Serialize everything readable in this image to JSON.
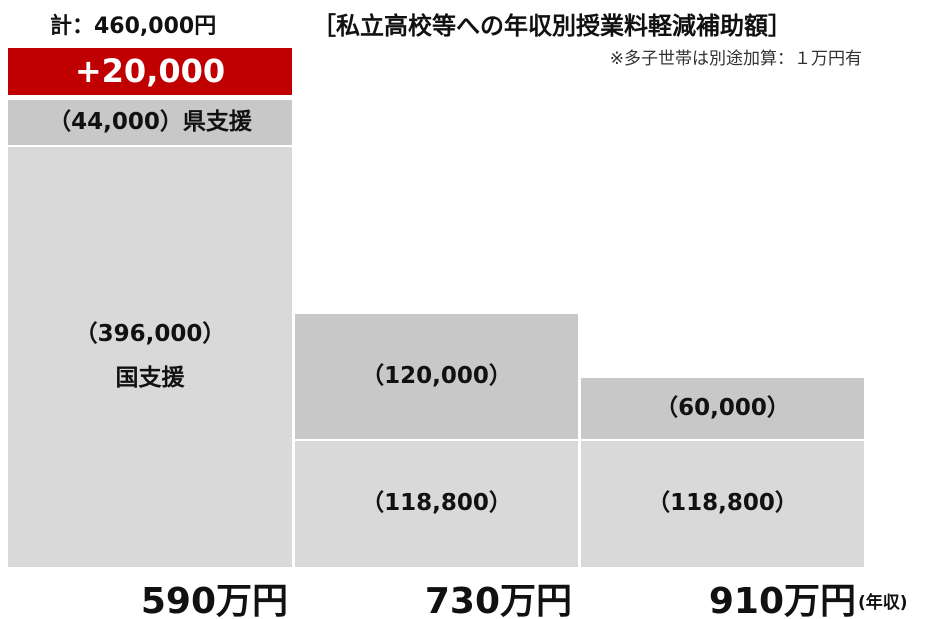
{
  "total": "計：460,000円",
  "title": "［私立高校等への年収別授業料軽減補助額］",
  "note": "※多子世帯は別途加算：１万円有",
  "columns": [
    {
      "income": "590万円",
      "blocks": [
        {
          "label": "+20,000"
        },
        {
          "label": "（44,000）県支援"
        },
        {
          "label": "（396,000）",
          "sublabel": "国支援"
        }
      ]
    },
    {
      "income": "730万円",
      "blocks": [
        {
          "label": "（120,000）"
        },
        {
          "label": "（118,800）"
        }
      ]
    },
    {
      "income": "910万円",
      "blocks": [
        {
          "label": "（60,000）"
        },
        {
          "label": "（118,800）"
        }
      ]
    }
  ],
  "income_unit": "(年収)"
}
